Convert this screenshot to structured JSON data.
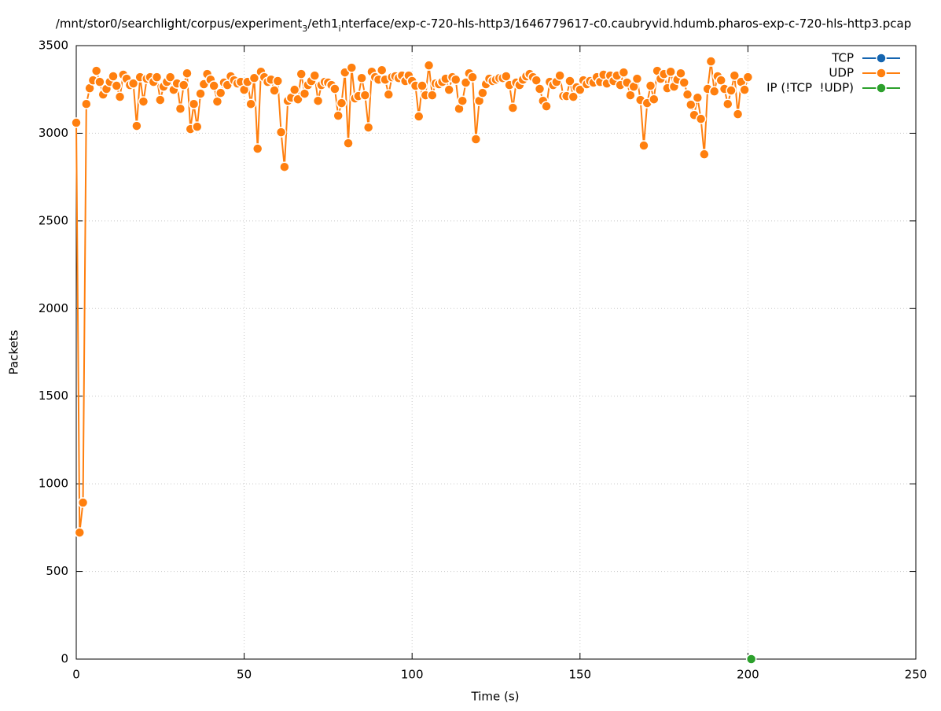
{
  "chart_data": {
    "type": "line",
    "title": [
      "/mnt/stor0/searchlight/corpus/experiment",
      "3",
      "/eth1",
      "i",
      "nterface/exp-c-720-hls-http3/1646779617-c0.caubryvid.hdumb.pharos-exp-c-720-hls-http3.pcap"
    ],
    "xlabel": "Time (s)",
    "ylabel": "Packets",
    "xlim": [
      0,
      250
    ],
    "xticks": [
      0,
      50,
      100,
      150,
      200,
      250
    ],
    "ylim": [
      0,
      3500
    ],
    "yticks": [
      0,
      500,
      1000,
      1500,
      2000,
      2500,
      3000,
      3500
    ],
    "grid": true,
    "legend": "top-right",
    "series": [
      {
        "name": "TCP",
        "color": "#1565b0",
        "x": [],
        "values": []
      },
      {
        "name": "UDP",
        "color": "#ff7f0e",
        "x": [
          0,
          1,
          2,
          3,
          4,
          5,
          6,
          7,
          8,
          9,
          10,
          11,
          12,
          13,
          14,
          15,
          16,
          17,
          18,
          19,
          20,
          21,
          22,
          23,
          24,
          25,
          26,
          27,
          28,
          29,
          30,
          31,
          32,
          33,
          34,
          35,
          36,
          37,
          38,
          39,
          40,
          41,
          42,
          43,
          44,
          45,
          46,
          47,
          48,
          49,
          50,
          51,
          52,
          53,
          54,
          55,
          56,
          57,
          58,
          59,
          60,
          61,
          62,
          63,
          64,
          65,
          66,
          67,
          68,
          69,
          70,
          71,
          72,
          73,
          74,
          75,
          76,
          77,
          78,
          79,
          80,
          81,
          82,
          83,
          84,
          85,
          86,
          87,
          88,
          89,
          90,
          91,
          92,
          93,
          94,
          95,
          96,
          97,
          98,
          99,
          100,
          101,
          102,
          103,
          104,
          105,
          106,
          107,
          108,
          109,
          110,
          111,
          112,
          113,
          114,
          115,
          116,
          117,
          118,
          119,
          120,
          121,
          122,
          123,
          124,
          125,
          126,
          127,
          128,
          129,
          130,
          131,
          132,
          133,
          134,
          135,
          136,
          137,
          138,
          139,
          140,
          141,
          142,
          143,
          144,
          145,
          146,
          147,
          148,
          149,
          150,
          151,
          152,
          153,
          154,
          155,
          156,
          157,
          158,
          159,
          160,
          161,
          162,
          163,
          164,
          165,
          166,
          167,
          168,
          169,
          170,
          171,
          172,
          173,
          174,
          175,
          176,
          177,
          178,
          179,
          180,
          181,
          182,
          183,
          184,
          185,
          186,
          187,
          188,
          189,
          190,
          191,
          192,
          193,
          194,
          195,
          196,
          197,
          198,
          199,
          200
        ],
        "values": [
          3060,
          722,
          893,
          3167,
          3257,
          3302,
          3356,
          3293,
          3221,
          3253,
          3293,
          3325,
          3271,
          3208,
          3334,
          3311,
          3275,
          3284,
          3042,
          3320,
          3181,
          3311,
          3320,
          3293,
          3320,
          3190,
          3266,
          3293,
          3320,
          3248,
          3284,
          3140,
          3275,
          3342,
          3024,
          3167,
          3037,
          3226,
          3280,
          3338,
          3306,
          3271,
          3181,
          3230,
          3289,
          3275,
          3325,
          3302,
          3284,
          3293,
          3248,
          3293,
          3167,
          3315,
          2912,
          3351,
          3320,
          3293,
          3306,
          3244,
          3298,
          3006,
          2808,
          3185,
          3203,
          3248,
          3194,
          3338,
          3226,
          3275,
          3298,
          3329,
          3185,
          3275,
          3293,
          3289,
          3275,
          3253,
          3100,
          3172,
          3347,
          2943,
          3374,
          3199,
          3212,
          3315,
          3217,
          3033,
          3351,
          3320,
          3306,
          3360,
          3306,
          3221,
          3320,
          3325,
          3315,
          3329,
          3298,
          3329,
          3298,
          3271,
          3096,
          3271,
          3217,
          3387,
          3217,
          3284,
          3280,
          3293,
          3311,
          3248,
          3320,
          3306,
          3140,
          3185,
          3289,
          3342,
          3320,
          2966,
          3185,
          3230,
          3280,
          3311,
          3298,
          3306,
          3315,
          3315,
          3325,
          3275,
          3145,
          3289,
          3275,
          3306,
          3325,
          3338,
          3320,
          3302,
          3253,
          3185,
          3154,
          3293,
          3275,
          3293,
          3329,
          3212,
          3212,
          3298,
          3208,
          3262,
          3248,
          3302,
          3280,
          3298,
          3289,
          3320,
          3293,
          3334,
          3284,
          3329,
          3298,
          3329,
          3275,
          3347,
          3289,
          3217,
          3266,
          3311,
          3190,
          2930,
          3172,
          3271,
          3194,
          3356,
          3311,
          3338,
          3257,
          3351,
          3266,
          3306,
          3342,
          3289,
          3221,
          3163,
          3104,
          3203,
          3082,
          2880,
          3253,
          3410,
          3239,
          3325,
          3302,
          3253,
          3167,
          3244,
          3329,
          3109,
          3293,
          3248,
          3320
        ]
      },
      {
        "name": "IP (!TCP  !UDP)",
        "color": "#2ca02c",
        "x": [
          201
        ],
        "values": [
          0
        ]
      }
    ]
  }
}
